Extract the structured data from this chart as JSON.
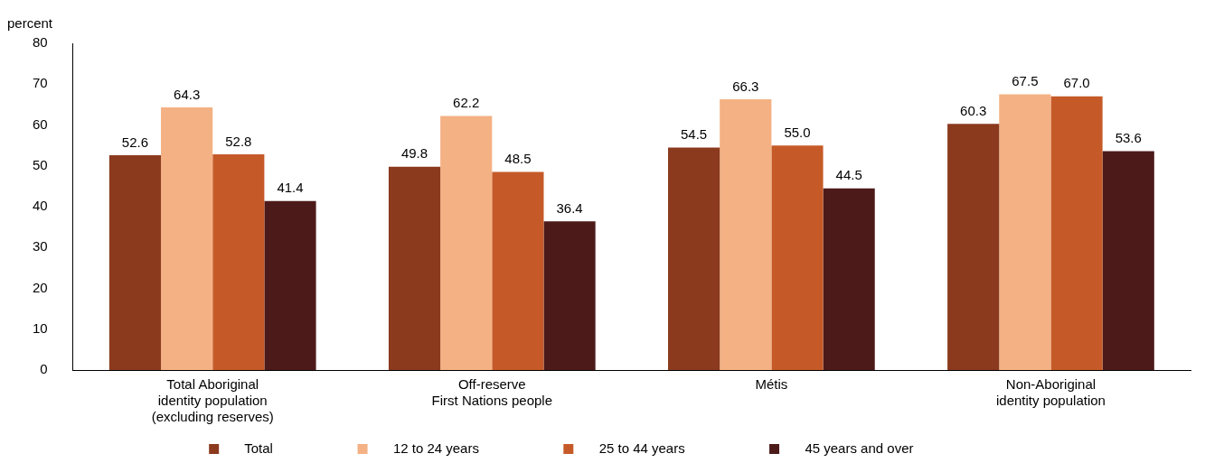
{
  "chart_data": {
    "type": "bar",
    "ylabel": "percent",
    "categories": [
      "Total Aboriginal\nidentity population\n(excluding reserves)",
      "Off-reserve\nFirst Nations people",
      "Métis",
      "Non-Aboriginal\nidentity population"
    ],
    "series": [
      {
        "name": "Total",
        "color": "#8b3a1e",
        "values": [
          52.6,
          49.8,
          54.5,
          60.3
        ],
        "value_labels": [
          "52.6",
          "49.8",
          "54.5",
          "60.3"
        ]
      },
      {
        "name": "12 to 24 years",
        "color": "#f4b183",
        "values": [
          64.3,
          62.2,
          66.3,
          67.5
        ],
        "value_labels": [
          "64.3",
          "62.2",
          "66.3",
          "67.5"
        ]
      },
      {
        "name": "25 to 44 years",
        "color": "#c55a28",
        "values": [
          52.8,
          48.5,
          55.0,
          67.0
        ],
        "value_labels": [
          "52.8",
          "48.5",
          "55.0",
          "67.0"
        ]
      },
      {
        "name": "45 years and over",
        "color": "#4d1a1a",
        "values": [
          41.4,
          36.4,
          44.5,
          53.6
        ],
        "value_labels": [
          "41.4",
          "36.4",
          "44.5",
          "53.6"
        ]
      }
    ],
    "ylim": [
      0,
      80
    ],
    "yticks": [
      0,
      10,
      20,
      30,
      40,
      50,
      60,
      70,
      80
    ],
    "grid": false,
    "legend": "bottom"
  }
}
